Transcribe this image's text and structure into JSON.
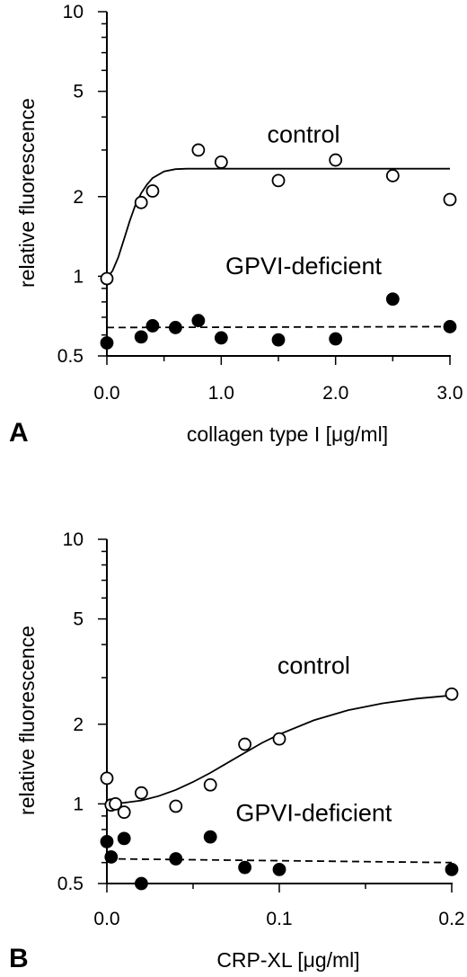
{
  "chart_data": [
    {
      "type": "scatter",
      "panel_label": "A",
      "xlabel": "collagen type I [μg/ml]",
      "ylabel": "relative fluorescence",
      "xlim": [
        0,
        3.0
      ],
      "ylim": [
        0.5,
        10
      ],
      "yscale": "log",
      "xticks": [
        0,
        1.0,
        2.0,
        3.0
      ],
      "xtick_labels": [
        "0.0",
        "1.0",
        "2.0",
        "3.0"
      ],
      "yticks": [
        0.5,
        1,
        2,
        5,
        10
      ],
      "ytick_labels": [
        "0.5",
        "1",
        "2",
        "5",
        "10"
      ],
      "annotations": [
        {
          "text": "control",
          "x": 1.72,
          "y": 3.2
        },
        {
          "text": "GPVI-deficient",
          "x": 1.72,
          "y": 1.02
        }
      ],
      "series": [
        {
          "name": "control",
          "marker": "open-circle",
          "x": [
            0,
            0.3,
            0.4,
            0.8,
            1.0,
            1.5,
            2.0,
            2.5,
            3.0
          ],
          "y": [
            0.98,
            1.9,
            2.1,
            3.0,
            2.7,
            2.3,
            2.75,
            2.4,
            1.95
          ],
          "fit": {
            "style": "solid",
            "x": [
              0,
              0.05,
              0.1,
              0.15,
              0.2,
              0.25,
              0.3,
              0.35,
              0.4,
              0.5,
              0.6,
              0.7,
              0.8,
              1.0,
              1.5,
              2.0,
              2.5,
              3.0
            ],
            "y": [
              0.98,
              1.05,
              1.18,
              1.38,
              1.62,
              1.86,
              2.06,
              2.22,
              2.35,
              2.49,
              2.54,
              2.55,
              2.55,
              2.55,
              2.55,
              2.55,
              2.55,
              2.55
            ]
          }
        },
        {
          "name": "GPVI-deficient",
          "marker": "filled-circle",
          "x": [
            0,
            0.3,
            0.4,
            0.6,
            0.8,
            1.0,
            1.5,
            2.0,
            2.5,
            3.0
          ],
          "y": [
            0.56,
            0.59,
            0.65,
            0.64,
            0.68,
            0.585,
            0.575,
            0.58,
            0.82,
            0.645
          ],
          "fit": {
            "style": "dashed",
            "x": [
              0,
              3.0
            ],
            "y": [
              0.64,
              0.645
            ]
          }
        }
      ]
    },
    {
      "type": "scatter",
      "panel_label": "B",
      "xlabel": "CRP-XL [μg/ml]",
      "ylabel": "relative fluorescence",
      "xlim": [
        0,
        0.2
      ],
      "ylim": [
        0.5,
        10
      ],
      "yscale": "log",
      "xticks": [
        0,
        0.1,
        0.2
      ],
      "xtick_labels": [
        "0.0",
        "0.1",
        "0.2"
      ],
      "yticks": [
        0.5,
        1,
        2,
        5,
        10
      ],
      "ytick_labels": [
        "0.5",
        "1",
        "2",
        "5",
        "10"
      ],
      "annotations": [
        {
          "text": "control",
          "x": 0.12,
          "y": 3.1
        },
        {
          "text": "GPVI-deficient",
          "x": 0.12,
          "y": 0.86
        }
      ],
      "series": [
        {
          "name": "control",
          "marker": "open-circle",
          "x": [
            0,
            0.0025,
            0.005,
            0.01,
            0.02,
            0.04,
            0.06,
            0.08,
            0.1,
            0.2
          ],
          "y": [
            1.25,
            0.99,
            1.0,
            0.93,
            1.1,
            0.98,
            1.18,
            1.68,
            1.76,
            2.6
          ],
          "fit": {
            "style": "solid",
            "x": [
              0,
              0.01,
              0.02,
              0.03,
              0.04,
              0.05,
              0.06,
              0.07,
              0.08,
              0.09,
              0.1,
              0.12,
              0.14,
              0.16,
              0.18,
              0.2
            ],
            "y": [
              1.0,
              1.01,
              1.03,
              1.07,
              1.13,
              1.21,
              1.31,
              1.43,
              1.56,
              1.7,
              1.83,
              2.07,
              2.26,
              2.4,
              2.5,
              2.57
            ]
          }
        },
        {
          "name": "GPVI-deficient",
          "marker": "filled-circle",
          "x": [
            0,
            0.0025,
            0.01,
            0.02,
            0.04,
            0.06,
            0.08,
            0.1,
            0.2
          ],
          "y": [
            0.72,
            0.63,
            0.74,
            0.5,
            0.62,
            0.75,
            0.575,
            0.565,
            0.565
          ],
          "fit": {
            "style": "dashed",
            "x": [
              0,
              0.2
            ],
            "y": [
              0.62,
              0.6
            ]
          }
        }
      ]
    }
  ]
}
